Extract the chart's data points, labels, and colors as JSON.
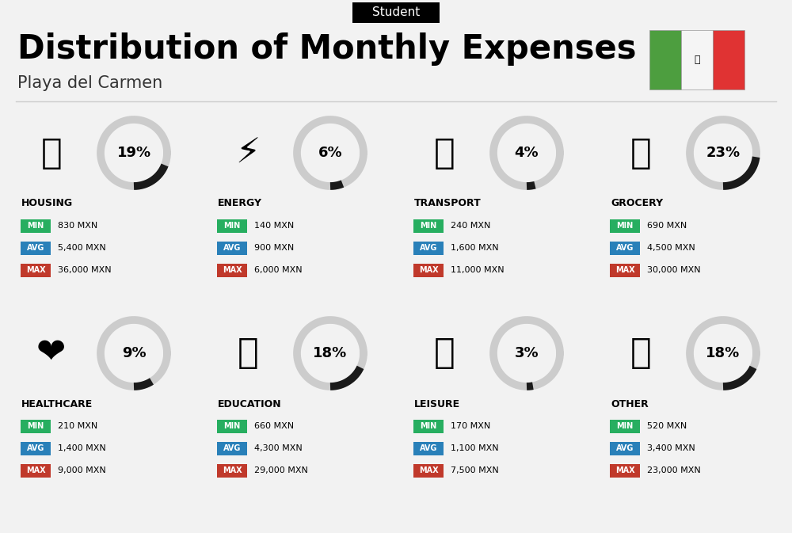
{
  "title": "Distribution of Monthly Expenses",
  "subtitle": "Playa del Carmen",
  "header_label": "Student",
  "background_color": "#f2f2f2",
  "categories": [
    {
      "name": "HOUSING",
      "percent": 19,
      "icon": "🏙",
      "min": "830 MXN",
      "avg": "5,400 MXN",
      "max": "36,000 MXN",
      "row": 0,
      "col": 0
    },
    {
      "name": "ENERGY",
      "percent": 6,
      "icon": "⚡",
      "min": "140 MXN",
      "avg": "900 MXN",
      "max": "6,000 MXN",
      "row": 0,
      "col": 1
    },
    {
      "name": "TRANSPORT",
      "percent": 4,
      "icon": "🚌",
      "min": "240 MXN",
      "avg": "1,600 MXN",
      "max": "11,000 MXN",
      "row": 0,
      "col": 2
    },
    {
      "name": "GROCERY",
      "percent": 23,
      "icon": "🛒",
      "min": "690 MXN",
      "avg": "4,500 MXN",
      "max": "30,000 MXN",
      "row": 0,
      "col": 3
    },
    {
      "name": "HEALTHCARE",
      "percent": 9,
      "icon": "❤️",
      "min": "210 MXN",
      "avg": "1,400 MXN",
      "max": "9,000 MXN",
      "row": 1,
      "col": 0
    },
    {
      "name": "EDUCATION",
      "percent": 18,
      "icon": "🎓",
      "min": "660 MXN",
      "avg": "4,300 MXN",
      "max": "29,000 MXN",
      "row": 1,
      "col": 1
    },
    {
      "name": "LEISURE",
      "percent": 3,
      "icon": "🛍️",
      "min": "170 MXN",
      "avg": "1,100 MXN",
      "max": "7,500 MXN",
      "row": 1,
      "col": 2
    },
    {
      "name": "OTHER",
      "percent": 18,
      "icon": "💰",
      "min": "520 MXN",
      "avg": "3,400 MXN",
      "max": "23,000 MXN",
      "row": 1,
      "col": 3
    }
  ],
  "color_min": "#27ae60",
  "color_avg": "#2980b9",
  "color_max": "#c0392b",
  "arc_bg_color": "#cccccc",
  "arc_fg_color": "#1a1a1a",
  "title_fontsize": 30,
  "subtitle_fontsize": 15,
  "header_fontsize": 11,
  "cat_name_fontsize": 9,
  "badge_fontsize": 7,
  "value_fontsize": 8,
  "pct_fontsize": 13
}
